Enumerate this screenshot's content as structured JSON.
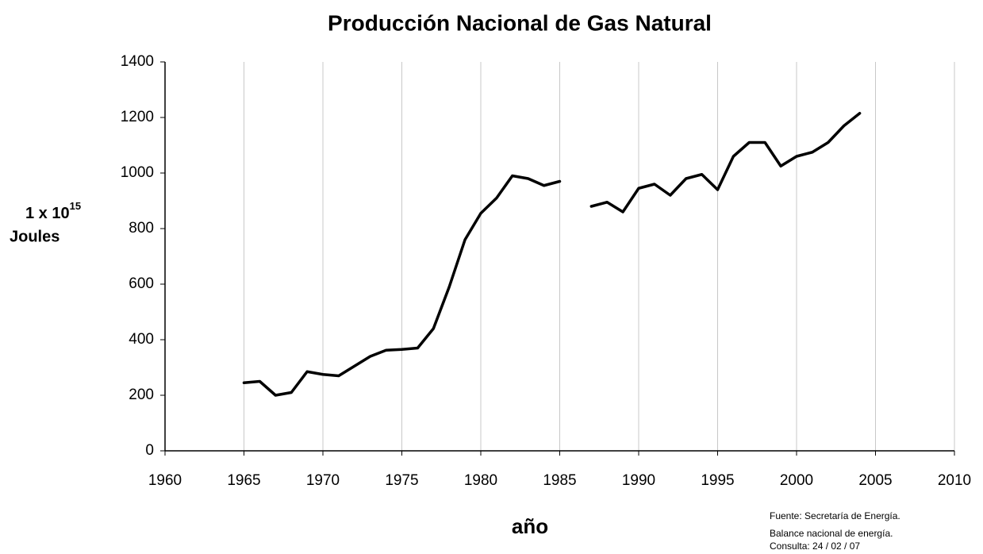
{
  "chart_data": {
    "type": "line",
    "title": "Producción Nacional de Gas Natural",
    "xlabel": "año",
    "ylabel": {
      "base": "1 x 10",
      "exponent": "15",
      "unit": "Joules"
    },
    "source": [
      "Fuente: Secretaría de Energía.",
      "Balance nacional de energía.",
      "Consulta: 24 / 02 / 07"
    ],
    "x": [
      1965,
      1966,
      1967,
      1968,
      1969,
      1970,
      1971,
      1972,
      1973,
      1974,
      1975,
      1976,
      1977,
      1978,
      1979,
      1980,
      1981,
      1982,
      1983,
      1984,
      1985,
      1986,
      1987,
      1988,
      1989,
      1990,
      1991,
      1992,
      1993,
      1994,
      1995,
      1996,
      1997,
      1998,
      1999,
      2000,
      2001,
      2002,
      2003,
      2004
    ],
    "series": [
      {
        "color": "#000000",
        "values": [
          245,
          250,
          200,
          210,
          285,
          275,
          270,
          305,
          340,
          362,
          365,
          370,
          440,
          590,
          760,
          855,
          910,
          990,
          980,
          955,
          970,
          null,
          880,
          895,
          860,
          945,
          960,
          920,
          980,
          995,
          940,
          1060,
          1110,
          1110,
          1025,
          1060,
          1075,
          1110,
          1170,
          1215
        ]
      }
    ],
    "xlim": [
      1960,
      2010
    ],
    "xticks": [
      1960,
      1965,
      1970,
      1975,
      1980,
      1985,
      1990,
      1995,
      2000,
      2005,
      2010
    ],
    "ylim": [
      0,
      1400
    ],
    "yticks": [
      0,
      200,
      400,
      600,
      800,
      1000,
      1200,
      1400
    ],
    "grid": "x"
  }
}
